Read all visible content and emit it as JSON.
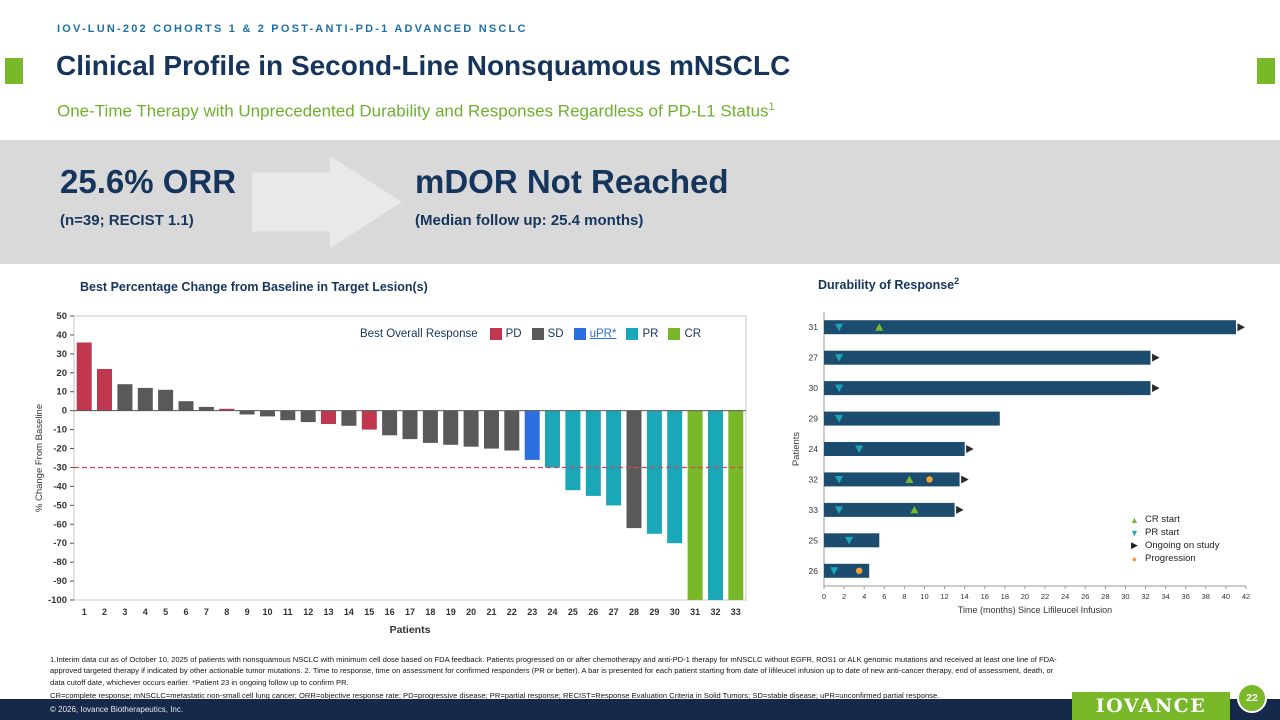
{
  "slide": {
    "eyebrow": "IOV-LUN-202 COHORTS 1 & 2 POST-ANTI-PD-1 ADVANCED NSCLC",
    "title": "Clinical Profile in Second-Line Nonsquamous mNSCLC",
    "subtitle": "One-Time Therapy with Unprecedented Durability and Responses Regardless of PD-L1 Status",
    "subtitle_sup": "1",
    "accent_green": "#78b829",
    "navy": "#16355c"
  },
  "banner": {
    "orr_value": "25.6% ORR",
    "orr_sub": "(n=39; RECIST 1.1)",
    "mdor_value": "mDOR Not Reached",
    "mdor_sub": "(Median follow up: 25.4 months)"
  },
  "chart_data": [
    {
      "type": "bar",
      "title": "Best Percentage Change from Baseline in Target Lesion(s)",
      "xlabel": "Patients",
      "ylabel": "% Change From Baseline",
      "ylim": [
        -100,
        50
      ],
      "yticks": [
        50,
        40,
        30,
        20,
        10,
        0,
        -10,
        -20,
        -30,
        -40,
        -50,
        -60,
        -70,
        -80,
        -90,
        -100
      ],
      "reference_line": -30,
      "reference_line_color": "#d04a52",
      "legend_title": "Best Overall Response",
      "legend": [
        {
          "label": "PD",
          "color": "#c0374f"
        },
        {
          "label": "SD",
          "color": "#595959"
        },
        {
          "label": "uPR*",
          "color": "#2b6fe0"
        },
        {
          "label": "PR",
          "color": "#1aa8b8"
        },
        {
          "label": "CR",
          "color": "#78b829"
        }
      ],
      "categories": [
        1,
        2,
        3,
        4,
        5,
        6,
        7,
        8,
        9,
        10,
        11,
        12,
        13,
        14,
        15,
        16,
        17,
        18,
        19,
        20,
        21,
        22,
        23,
        24,
        25,
        26,
        27,
        28,
        29,
        30,
        31,
        32,
        33
      ],
      "values": [
        36,
        22,
        14,
        12,
        11,
        5,
        2,
        1,
        -2,
        -3,
        -5,
        -6,
        -7,
        -8,
        -10,
        -13,
        -15,
        -17,
        -18,
        -19,
        -20,
        -21,
        -26,
        -30,
        -42,
        -45,
        -50,
        -62,
        -65,
        -70,
        -100,
        -100,
        -100
      ],
      "responses": [
        "PD",
        "PD",
        "SD",
        "SD",
        "SD",
        "SD",
        "SD",
        "PD",
        "SD",
        "SD",
        "SD",
        "SD",
        "PD",
        "SD",
        "PD",
        "SD",
        "SD",
        "SD",
        "SD",
        "SD",
        "SD",
        "SD",
        "uPR",
        "PR",
        "PR",
        "PR",
        "PR",
        "SD",
        "PR",
        "PR",
        "CR",
        "PR",
        "CR"
      ]
    },
    {
      "type": "swimmer",
      "title": "Durability of Response",
      "title_sup": "2",
      "xlabel": "Time (months) Since Lifileucel Infusion",
      "ylabel": "Patients",
      "xlim": [
        0,
        42
      ],
      "xticks": [
        0,
        2,
        4,
        6,
        8,
        10,
        12,
        14,
        16,
        18,
        20,
        22,
        24,
        26,
        28,
        30,
        32,
        34,
        36,
        38,
        40,
        42
      ],
      "bar_color": "#1d4d6e",
      "rows": [
        {
          "patient": "31",
          "duration": 41,
          "pr_start": 1.5,
          "cr_start": 5.5,
          "progression": null,
          "ongoing": true
        },
        {
          "patient": "27",
          "duration": 32.5,
          "pr_start": 1.5,
          "cr_start": null,
          "progression": null,
          "ongoing": true
        },
        {
          "patient": "30",
          "duration": 32.5,
          "pr_start": 1.5,
          "cr_start": null,
          "progression": null,
          "ongoing": true
        },
        {
          "patient": "29",
          "duration": 17.5,
          "pr_start": 1.5,
          "cr_start": null,
          "progression": null,
          "ongoing": false
        },
        {
          "patient": "24",
          "duration": 14,
          "pr_start": 3.5,
          "cr_start": null,
          "progression": null,
          "ongoing": true
        },
        {
          "patient": "32",
          "duration": 13.5,
          "pr_start": 1.5,
          "cr_start": 8.5,
          "progression": 10.5,
          "ongoing": true
        },
        {
          "patient": "33",
          "duration": 13,
          "pr_start": 1.5,
          "cr_start": 9,
          "progression": null,
          "ongoing": true
        },
        {
          "patient": "25",
          "duration": 5.5,
          "pr_start": 2.5,
          "cr_start": null,
          "progression": null,
          "ongoing": false
        },
        {
          "patient": "26",
          "duration": 4.5,
          "pr_start": 1,
          "cr_start": null,
          "progression": 3.5,
          "ongoing": false
        }
      ],
      "legend": [
        {
          "label": "CR start",
          "marker": "triangle-up",
          "color": "#78b829"
        },
        {
          "label": "PR start",
          "marker": "triangle-down",
          "color": "#1aa8b8"
        },
        {
          "label": "Ongoing on study",
          "marker": "arrow-right",
          "color": "#222222"
        },
        {
          "label": "Progression",
          "marker": "circle",
          "color": "#f2a339"
        }
      ]
    }
  ],
  "footnotes": {
    "line1": "1.Interim data cut as of October 10, 2025 of patients with nonsquamous NSCLC with minimum cell dose based on FDA feedback. Patients progressed on or after chemotherapy and anti-PD-1 therapy for mNSCLC without EGFR, ROS1 or ALK genomic mutations and received at least one line of FDA-approved targeted therapy if indicated by other actionable tumor mutations. 2. Time to response, time on assessment for confirmed responders (PR or better). A bar is presented for each patient starting from date of lifileucel infusion up to date of new anti-cancer therapy, end of assessment, death, or data cutoff date, whichever occurs earlier. *Patient 23 in ongoing follow up to confirm PR.",
    "line2": "CR=complete response; mNSCLC=metastatic non-small cell lung cancer; ORR=objective response rate; PD=progressive disease; PR=partial response; RECIST=Response Evaluation Criteria in Solid Tumors; SD=stable disease; uPR=unconfirmed partial response."
  },
  "footer": {
    "copyright": "© 2026, Iovance Biotherapeutics, Inc.",
    "logo_text": "IOVANCE",
    "page_number": "22"
  }
}
